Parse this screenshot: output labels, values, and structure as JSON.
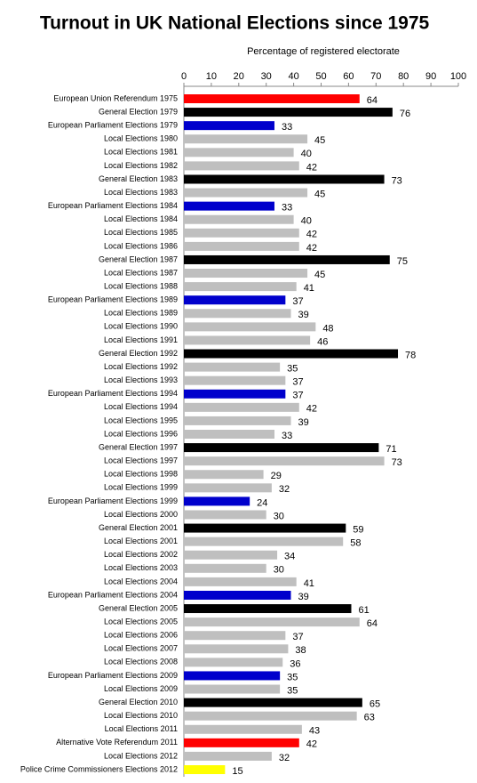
{
  "chart_data": {
    "type": "bar",
    "orientation": "horizontal",
    "title": "Turnout in UK National Elections since 1975",
    "x_label": "Percentage of registered electorate",
    "categories": [
      "European Union Referendum 1975",
      "General Election 1979",
      "European Parliament Elections 1979",
      "Local Elections 1980",
      "Local Elections 1981",
      "Local Elections 1982",
      "General Election 1983",
      "Local Elections 1983",
      "European Parliament Elections 1984",
      "Local Elections 1984",
      "Local Elections 1985",
      "Local Elections 1986",
      "General Election 1987",
      "Local Elections 1987",
      "Local Elections 1988",
      "European Parliament Elections 1989",
      "Local Elections 1989",
      "Local Elections 1990",
      "Local Elections 1991",
      "General Election 1992",
      "Local Elections 1992",
      "Local Elections 1993",
      "European Parliament Elections 1994",
      "Local Elections 1994",
      "Local Elections 1995",
      "Local Elections 1996",
      "General Election 1997",
      "Local Elections 1997",
      "Local Elections 1998",
      "Local Elections 1999",
      "European Parliament Elections 1999",
      "Local Elections 2000",
      "General Election 2001",
      "Local Elections 2001",
      "Local Elections 2002",
      "Local Elections 2003",
      "Local Elections 2004",
      "European Parliament Elections 2004",
      "General Election 2005",
      "Local Elections 2005",
      "Local Elections 2006",
      "Local Elections 2007",
      "Local Elections 2008",
      "European Parliament Elections 2009",
      "Local Elections 2009",
      "General Election 2010",
      "Local Elections 2010",
      "Local Elections 2011",
      "Alternative Vote Referendum 2011",
      "Local Elections 2012",
      "Police Crime Commissioners Elections 2012"
    ],
    "values": [
      64,
      76,
      33,
      45,
      40,
      42,
      73,
      45,
      33,
      40,
      42,
      42,
      75,
      45,
      41,
      37,
      39,
      48,
      46,
      78,
      35,
      37,
      37,
      42,
      39,
      33,
      71,
      73,
      29,
      32,
      24,
      30,
      59,
      58,
      34,
      30,
      41,
      39,
      61,
      64,
      37,
      38,
      36,
      35,
      35,
      65,
      63,
      43,
      42,
      32,
      15
    ],
    "colors": [
      "#ff0000",
      "#000000",
      "#0000cc",
      "#bfbfbf",
      "#bfbfbf",
      "#bfbfbf",
      "#000000",
      "#bfbfbf",
      "#0000cc",
      "#bfbfbf",
      "#bfbfbf",
      "#bfbfbf",
      "#000000",
      "#bfbfbf",
      "#bfbfbf",
      "#0000cc",
      "#bfbfbf",
      "#bfbfbf",
      "#bfbfbf",
      "#000000",
      "#bfbfbf",
      "#bfbfbf",
      "#0000cc",
      "#bfbfbf",
      "#bfbfbf",
      "#bfbfbf",
      "#000000",
      "#bfbfbf",
      "#bfbfbf",
      "#bfbfbf",
      "#0000cc",
      "#bfbfbf",
      "#000000",
      "#bfbfbf",
      "#bfbfbf",
      "#bfbfbf",
      "#bfbfbf",
      "#0000cc",
      "#000000",
      "#bfbfbf",
      "#bfbfbf",
      "#bfbfbf",
      "#bfbfbf",
      "#0000cc",
      "#bfbfbf",
      "#000000",
      "#bfbfbf",
      "#bfbfbf",
      "#ff0000",
      "#bfbfbf",
      "#ffff00"
    ],
    "xlim": [
      0,
      100
    ],
    "xticks": [
      0,
      10,
      20,
      30,
      40,
      50,
      60,
      70,
      80,
      90,
      100
    ],
    "grid": false
  }
}
